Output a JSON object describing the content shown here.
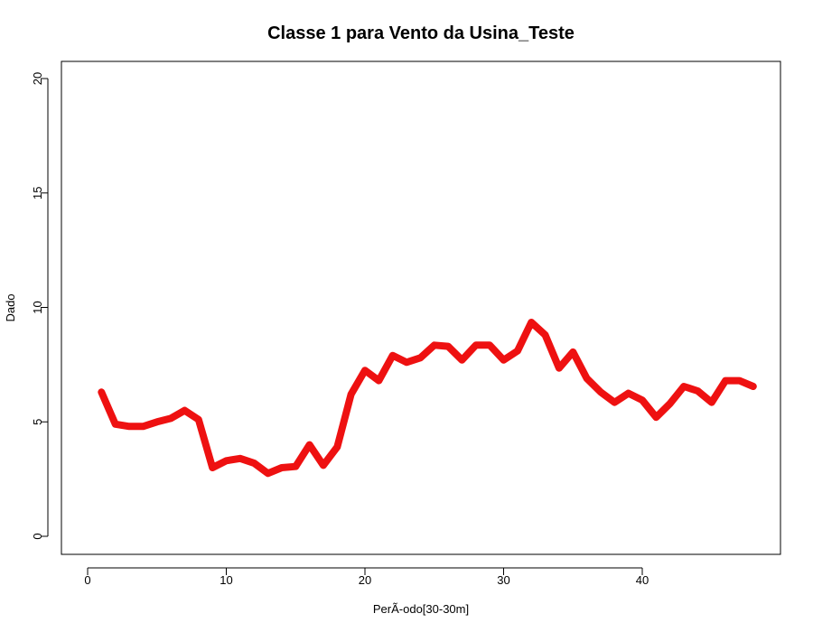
{
  "chart_data": {
    "type": "line",
    "title": "Classe  1 para Vento da Usina_Teste",
    "xlabel": "PerÃ-odo[30-30m]",
    "ylabel": "Dado",
    "xlim": [
      0,
      49
    ],
    "ylim": [
      0,
      20
    ],
    "x_ticks": [
      0,
      10,
      20,
      30,
      40
    ],
    "y_ticks": [
      0,
      5,
      10,
      15,
      20
    ],
    "x_tick_labels": [
      "0",
      "10",
      "20",
      "30",
      "40"
    ],
    "y_tick_labels": [
      "0",
      "5",
      "10",
      "15",
      "20"
    ],
    "grid": false,
    "series": [
      {
        "color": "#ee1111",
        "x": [
          1,
          2,
          3,
          4,
          5,
          6,
          7,
          8,
          9,
          10,
          11,
          12,
          13,
          14,
          15,
          16,
          17,
          18,
          19,
          20,
          21,
          22,
          23,
          24,
          25,
          26,
          27,
          28,
          29,
          30,
          31,
          32,
          33,
          34,
          35,
          36,
          37,
          38,
          39,
          40,
          41,
          42,
          43,
          44,
          45,
          46,
          47,
          48
        ],
        "values": [
          6.3,
          4.9,
          4.8,
          4.8,
          5.0,
          5.15,
          5.5,
          5.1,
          3.0,
          3.3,
          3.4,
          3.2,
          2.75,
          3.0,
          3.05,
          4.0,
          3.1,
          3.9,
          6.2,
          7.25,
          6.8,
          7.9,
          7.6,
          7.8,
          8.35,
          8.3,
          7.7,
          8.35,
          8.35,
          7.7,
          8.1,
          9.35,
          8.8,
          7.35,
          8.05,
          6.9,
          6.3,
          5.85,
          6.25,
          5.95,
          5.2,
          5.8,
          6.55,
          6.35,
          5.85,
          6.8,
          6.8,
          6.55
        ]
      }
    ]
  }
}
